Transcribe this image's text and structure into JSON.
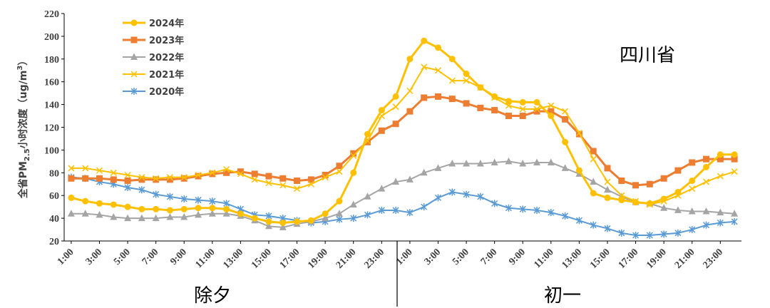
{
  "chart_data": {
    "type": "line",
    "annotation": "四川省",
    "ylabel_parts": [
      "全省PM",
      "2.5",
      "小时浓度（ug/m",
      "3",
      "）"
    ],
    "ylim": [
      20,
      220
    ],
    "yticks": [
      20,
      40,
      60,
      80,
      100,
      120,
      140,
      160,
      180,
      200,
      220
    ],
    "grid": false,
    "legend_position": "top-left",
    "x": [
      "1:00",
      "2:00",
      "3:00",
      "4:00",
      "5:00",
      "6:00",
      "7:00",
      "8:00",
      "9:00",
      "10:00",
      "11:00",
      "12:00",
      "13:00",
      "14:00",
      "15:00",
      "16:00",
      "17:00",
      "18:00",
      "19:00",
      "20:00",
      "21:00",
      "22:00",
      "23:00",
      "24:00",
      "1:00",
      "2:00",
      "3:00",
      "4:00",
      "5:00",
      "6:00",
      "7:00",
      "8:00",
      "9:00",
      "10:00",
      "11:00",
      "12:00",
      "13:00",
      "14:00",
      "15:00",
      "16:00",
      "17:00",
      "18:00",
      "19:00",
      "20:00",
      "21:00",
      "22:00",
      "23:00",
      "24:00"
    ],
    "xtick_labels": [
      "1:00",
      "3:00",
      "5:00",
      "7:00",
      "9:00",
      "11:00",
      "13:00",
      "15:00",
      "17:00",
      "19:00",
      "21:00",
      "23:00",
      "1:00",
      "3:00",
      "5:00",
      "7:00",
      "9:00",
      "11:00",
      "13:00",
      "15:00",
      "17:00",
      "19:00",
      "21:00",
      "23:00"
    ],
    "groups": [
      "除夕",
      "初一"
    ],
    "series": [
      {
        "name": "2024年",
        "color": "#FFC000",
        "marker": "circle",
        "values": [
          58,
          55,
          53,
          52,
          50,
          48,
          48,
          47,
          48,
          49,
          49,
          48,
          44,
          40,
          37,
          36,
          37,
          38,
          44,
          55,
          80,
          114,
          135,
          147,
          180,
          196,
          190,
          180,
          167,
          155,
          147,
          143,
          142,
          142,
          130,
          107,
          82,
          62,
          58,
          56,
          54,
          53,
          57,
          63,
          73,
          85,
          96,
          96
        ]
      },
      {
        "name": "2023年",
        "color": "#ED7D31",
        "marker": "square",
        "values": [
          75,
          75,
          75,
          74,
          73,
          74,
          74,
          74,
          75,
          77,
          79,
          80,
          81,
          79,
          77,
          75,
          73,
          74,
          78,
          86,
          97,
          107,
          117,
          123,
          134,
          146,
          147,
          145,
          141,
          137,
          135,
          130,
          130,
          134,
          134,
          127,
          114,
          99,
          84,
          73,
          69,
          70,
          75,
          82,
          89,
          92,
          92,
          92
        ]
      },
      {
        "name": "2022年",
        "color": "#A5A5A5",
        "marker": "triangle",
        "values": [
          44,
          44,
          43,
          41,
          40,
          40,
          40,
          41,
          41,
          43,
          44,
          44,
          42,
          38,
          33,
          32,
          35,
          37,
          40,
          44,
          52,
          59,
          66,
          72,
          74,
          80,
          84,
          88,
          88,
          88,
          89,
          90,
          88,
          89,
          89,
          84,
          79,
          72,
          65,
          59,
          54,
          53,
          49,
          47,
          46,
          46,
          45,
          44
        ]
      },
      {
        "name": "2021年",
        "color": "#FFC000",
        "marker": "x",
        "values": [
          84,
          84,
          82,
          80,
          78,
          76,
          75,
          76,
          76,
          78,
          80,
          83,
          79,
          74,
          71,
          69,
          66,
          70,
          76,
          81,
          95,
          108,
          130,
          138,
          152,
          173,
          170,
          161,
          161,
          155,
          146,
          139,
          136,
          136,
          139,
          134,
          115,
          92,
          72,
          60,
          55,
          52,
          55,
          60,
          66,
          72,
          77,
          81
        ]
      },
      {
        "name": "2020年",
        "color": "#5B9BD5",
        "marker": "star",
        "values": [
          76,
          75,
          72,
          70,
          67,
          65,
          61,
          59,
          57,
          56,
          55,
          53,
          48,
          43,
          42,
          40,
          38,
          36,
          37,
          39,
          40,
          43,
          47,
          47,
          45,
          50,
          58,
          63,
          61,
          59,
          53,
          49,
          48,
          47,
          45,
          42,
          38,
          34,
          31,
          27,
          25,
          25,
          26,
          27,
          30,
          34,
          36,
          37
        ]
      }
    ]
  }
}
